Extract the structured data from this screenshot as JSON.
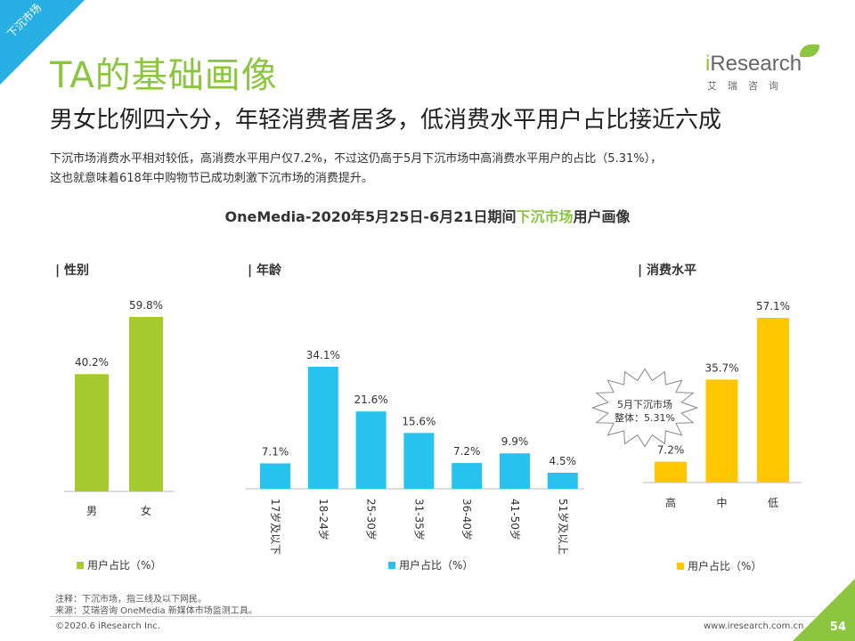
{
  "corner_tag": "下沉市场",
  "title": "TA的基础画像",
  "subtitle": "男女比例四六分，年轻消费者居多，低消费水平用户占比接近六成",
  "description": [
    "下沉市场消费水平相对较低，高消费水平用户仅7.2%，不过这仍高于5月下沉市场中高消费水平用户的占比（5.31%），",
    "这也就意味着618年中购物节已成功刺激下沉市场的消费提升。"
  ],
  "logo": {
    "brand_i": "i",
    "brand_rest": "Research",
    "sub": "艾瑞咨询"
  },
  "chart_title": {
    "part1": "OneMedia-2020年5月25日-6月21日期间",
    "highlight": "下沉市场",
    "part2": "用户画像"
  },
  "colors": {
    "green": "#a6cb2f",
    "blue": "#27c3ee",
    "yellow": "#ffc700",
    "accent_green": "#8cc63f",
    "accent_blue": "#27aee3"
  },
  "chart_data": [
    {
      "type": "bar",
      "section_label": "| 性别",
      "categories": [
        "男",
        "女"
      ],
      "values": [
        40.2,
        59.8
      ],
      "value_labels": [
        "40.2%",
        "59.8%"
      ],
      "legend": "用户占比（%）",
      "color": "#a6cb2f"
    },
    {
      "type": "bar",
      "section_label": "| 年龄",
      "categories": [
        "17岁及以下",
        "18-24岁",
        "25-30岁",
        "31-35岁",
        "36-40岁",
        "41-50岁",
        "51岁及以上"
      ],
      "values": [
        7.1,
        34.1,
        21.6,
        15.6,
        7.2,
        9.9,
        4.5
      ],
      "value_labels": [
        "7.1%",
        "34.1%",
        "21.6%",
        "15.6%",
        "7.2%",
        "9.9%",
        "4.5%"
      ],
      "legend": "用户占比（%）",
      "color": "#27c3ee"
    },
    {
      "type": "bar",
      "section_label": "| 消费水平",
      "categories": [
        "高",
        "中",
        "低"
      ],
      "values": [
        7.2,
        35.7,
        57.1
      ],
      "value_labels": [
        "7.2%",
        "35.7%",
        "57.1%"
      ],
      "legend": "用户占比（%）",
      "color": "#ffc700",
      "annotation": {
        "line1": "5月下沉市场",
        "line2": "整体：5.31%"
      }
    }
  ],
  "notes": {
    "note": "注释：下沉市场，指三线及以下网民。",
    "source": "来源：艾瑞咨询 OneMedia 新媒体市场监测工具。"
  },
  "footer": {
    "copyright": "©2020.6 iResearch Inc.",
    "url": "www.iresearch.com.cn",
    "page": "54"
  }
}
